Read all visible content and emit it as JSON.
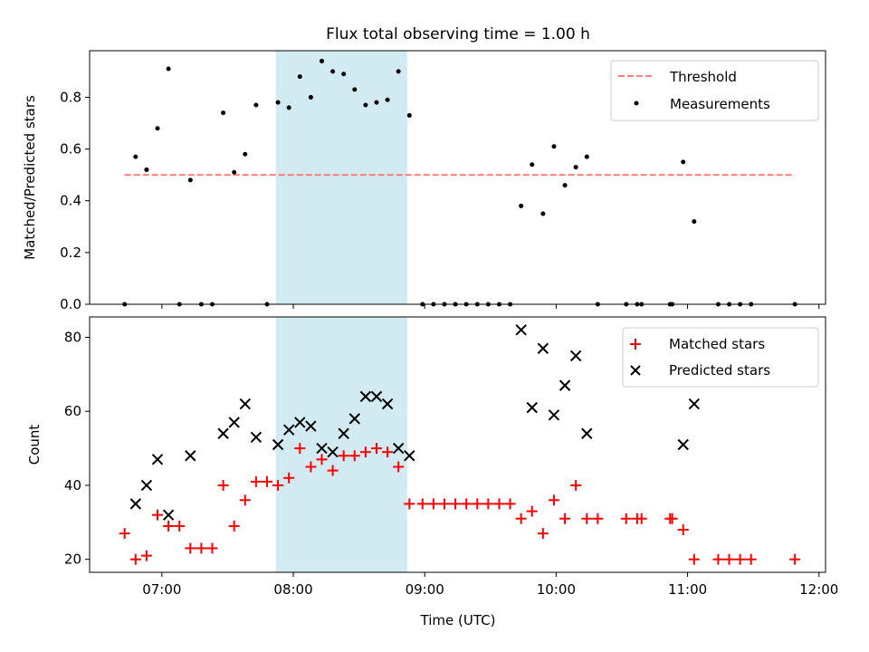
{
  "chart_data": [
    {
      "type": "scatter",
      "title": "Flux total observing time = 1.00 h",
      "xlabel": "",
      "ylabel": "Matched/Predicted stars",
      "xlim": [
        "06:27",
        "12:03"
      ],
      "ylim": [
        0,
        0.98
      ],
      "yticks": [
        "0.0",
        "0.2",
        "0.4",
        "0.6",
        "0.8"
      ],
      "shaded_span": {
        "start": "07:52",
        "end": "08:52",
        "color": "#add8e6"
      },
      "threshold": {
        "name": "Threshold",
        "value": 0.5,
        "x_start": "06:43",
        "x_end": "11:49",
        "color": "#ff7f7f",
        "style": "dashed"
      },
      "legend": {
        "position": "upper right",
        "entries": [
          "Threshold",
          "Measurements"
        ]
      },
      "series": [
        {
          "name": "Measurements",
          "color": "#000000",
          "points": [
            [
              "06:43",
              0.0
            ],
            [
              "06:48",
              0.57
            ],
            [
              "06:53",
              0.52
            ],
            [
              "06:58",
              0.68
            ],
            [
              "07:03",
              0.91
            ],
            [
              "07:08",
              0.0
            ],
            [
              "07:13",
              0.48
            ],
            [
              "07:18",
              0.0
            ],
            [
              "07:23",
              0.0
            ],
            [
              "07:28",
              0.74
            ],
            [
              "07:33",
              0.51
            ],
            [
              "07:38",
              0.58
            ],
            [
              "07:43",
              0.77
            ],
            [
              "07:48",
              0.0
            ],
            [
              "07:53",
              0.78
            ],
            [
              "07:58",
              0.76
            ],
            [
              "08:03",
              0.88
            ],
            [
              "08:08",
              0.8
            ],
            [
              "08:13",
              0.94
            ],
            [
              "08:18",
              0.9
            ],
            [
              "08:23",
              0.89
            ],
            [
              "08:28",
              0.83
            ],
            [
              "08:33",
              0.77
            ],
            [
              "08:38",
              0.78
            ],
            [
              "08:43",
              0.79
            ],
            [
              "08:48",
              0.9
            ],
            [
              "08:53",
              0.73
            ],
            [
              "08:59",
              0.0
            ],
            [
              "09:04",
              0.0
            ],
            [
              "09:09",
              0.0
            ],
            [
              "09:14",
              0.0
            ],
            [
              "09:19",
              0.0
            ],
            [
              "09:24",
              0.0
            ],
            [
              "09:29",
              0.0
            ],
            [
              "09:34",
              0.0
            ],
            [
              "09:39",
              0.0
            ],
            [
              "09:44",
              0.38
            ],
            [
              "09:49",
              0.54
            ],
            [
              "09:54",
              0.35
            ],
            [
              "09:59",
              0.61
            ],
            [
              "10:04",
              0.46
            ],
            [
              "10:09",
              0.53
            ],
            [
              "10:14",
              0.57
            ],
            [
              "10:19",
              0.0
            ],
            [
              "10:32",
              0.0
            ],
            [
              "10:37",
              0.0
            ],
            [
              "10:39",
              0.0
            ],
            [
              "10:52",
              0.0
            ],
            [
              "10:53",
              0.0
            ],
            [
              "10:58",
              0.55
            ],
            [
              "11:03",
              0.32
            ],
            [
              "11:14",
              0.0
            ],
            [
              "11:19",
              0.0
            ],
            [
              "11:24",
              0.0
            ],
            [
              "11:29",
              0.0
            ],
            [
              "11:49",
              0.0
            ]
          ]
        }
      ]
    },
    {
      "type": "scatter",
      "title": "",
      "xlabel": "Time (UTC)",
      "ylabel": "Count",
      "xlim": [
        "06:27",
        "12:03"
      ],
      "ylim": [
        16.5,
        85.5
      ],
      "xticks": [
        "07:00",
        "08:00",
        "09:00",
        "10:00",
        "11:00",
        "12:00"
      ],
      "yticks": [
        "20",
        "40",
        "60",
        "80"
      ],
      "shaded_span": {
        "start": "07:52",
        "end": "08:52",
        "color": "#add8e6"
      },
      "legend": {
        "position": "upper right",
        "entries": [
          "Matched stars",
          "Predicted stars"
        ]
      },
      "series": [
        {
          "name": "Matched stars",
          "marker": "+",
          "color": "#ff0000",
          "points": [
            [
              "06:43",
              27
            ],
            [
              "06:48",
              20
            ],
            [
              "06:53",
              21
            ],
            [
              "06:58",
              32
            ],
            [
              "07:03",
              29
            ],
            [
              "07:08",
              29
            ],
            [
              "07:13",
              23
            ],
            [
              "07:18",
              23
            ],
            [
              "07:23",
              23
            ],
            [
              "07:28",
              40
            ],
            [
              "07:33",
              29
            ],
            [
              "07:38",
              36
            ],
            [
              "07:43",
              41
            ],
            [
              "07:48",
              41
            ],
            [
              "07:53",
              40
            ],
            [
              "07:58",
              42
            ],
            [
              "08:03",
              50
            ],
            [
              "08:08",
              45
            ],
            [
              "08:13",
              47
            ],
            [
              "08:18",
              44
            ],
            [
              "08:23",
              48
            ],
            [
              "08:28",
              48
            ],
            [
              "08:33",
              49
            ],
            [
              "08:38",
              50
            ],
            [
              "08:43",
              49
            ],
            [
              "08:48",
              45
            ],
            [
              "08:53",
              35
            ],
            [
              "08:59",
              35
            ],
            [
              "09:04",
              35
            ],
            [
              "09:09",
              35
            ],
            [
              "09:14",
              35
            ],
            [
              "09:19",
              35
            ],
            [
              "09:24",
              35
            ],
            [
              "09:29",
              35
            ],
            [
              "09:34",
              35
            ],
            [
              "09:39",
              35
            ],
            [
              "09:44",
              31
            ],
            [
              "09:49",
              33
            ],
            [
              "09:54",
              27
            ],
            [
              "09:59",
              36
            ],
            [
              "10:04",
              31
            ],
            [
              "10:09",
              40
            ],
            [
              "10:14",
              31
            ],
            [
              "10:19",
              31
            ],
            [
              "10:32",
              31
            ],
            [
              "10:37",
              31
            ],
            [
              "10:39",
              31
            ],
            [
              "10:52",
              31
            ],
            [
              "10:53",
              31
            ],
            [
              "10:58",
              28
            ],
            [
              "11:03",
              20
            ],
            [
              "11:14",
              20
            ],
            [
              "11:19",
              20
            ],
            [
              "11:24",
              20
            ],
            [
              "11:29",
              20
            ],
            [
              "11:49",
              20
            ]
          ]
        },
        {
          "name": "Predicted stars",
          "marker": "x",
          "color": "#000000",
          "points": [
            [
              "06:48",
              35
            ],
            [
              "06:53",
              40
            ],
            [
              "06:58",
              47
            ],
            [
              "07:03",
              32
            ],
            [
              "07:13",
              48
            ],
            [
              "07:28",
              54
            ],
            [
              "07:33",
              57
            ],
            [
              "07:38",
              62
            ],
            [
              "07:43",
              53
            ],
            [
              "07:53",
              51
            ],
            [
              "07:58",
              55
            ],
            [
              "08:03",
              57
            ],
            [
              "08:08",
              56
            ],
            [
              "08:13",
              50
            ],
            [
              "08:18",
              49
            ],
            [
              "08:23",
              54
            ],
            [
              "08:28",
              58
            ],
            [
              "08:33",
              64
            ],
            [
              "08:38",
              64
            ],
            [
              "08:43",
              62
            ],
            [
              "08:48",
              50
            ],
            [
              "08:53",
              48
            ],
            [
              "09:44",
              82
            ],
            [
              "09:49",
              61
            ],
            [
              "09:54",
              77
            ],
            [
              "09:59",
              59
            ],
            [
              "10:04",
              67
            ],
            [
              "10:09",
              75
            ],
            [
              "10:14",
              54
            ],
            [
              "10:58",
              51
            ],
            [
              "11:03",
              62
            ]
          ]
        }
      ]
    }
  ]
}
